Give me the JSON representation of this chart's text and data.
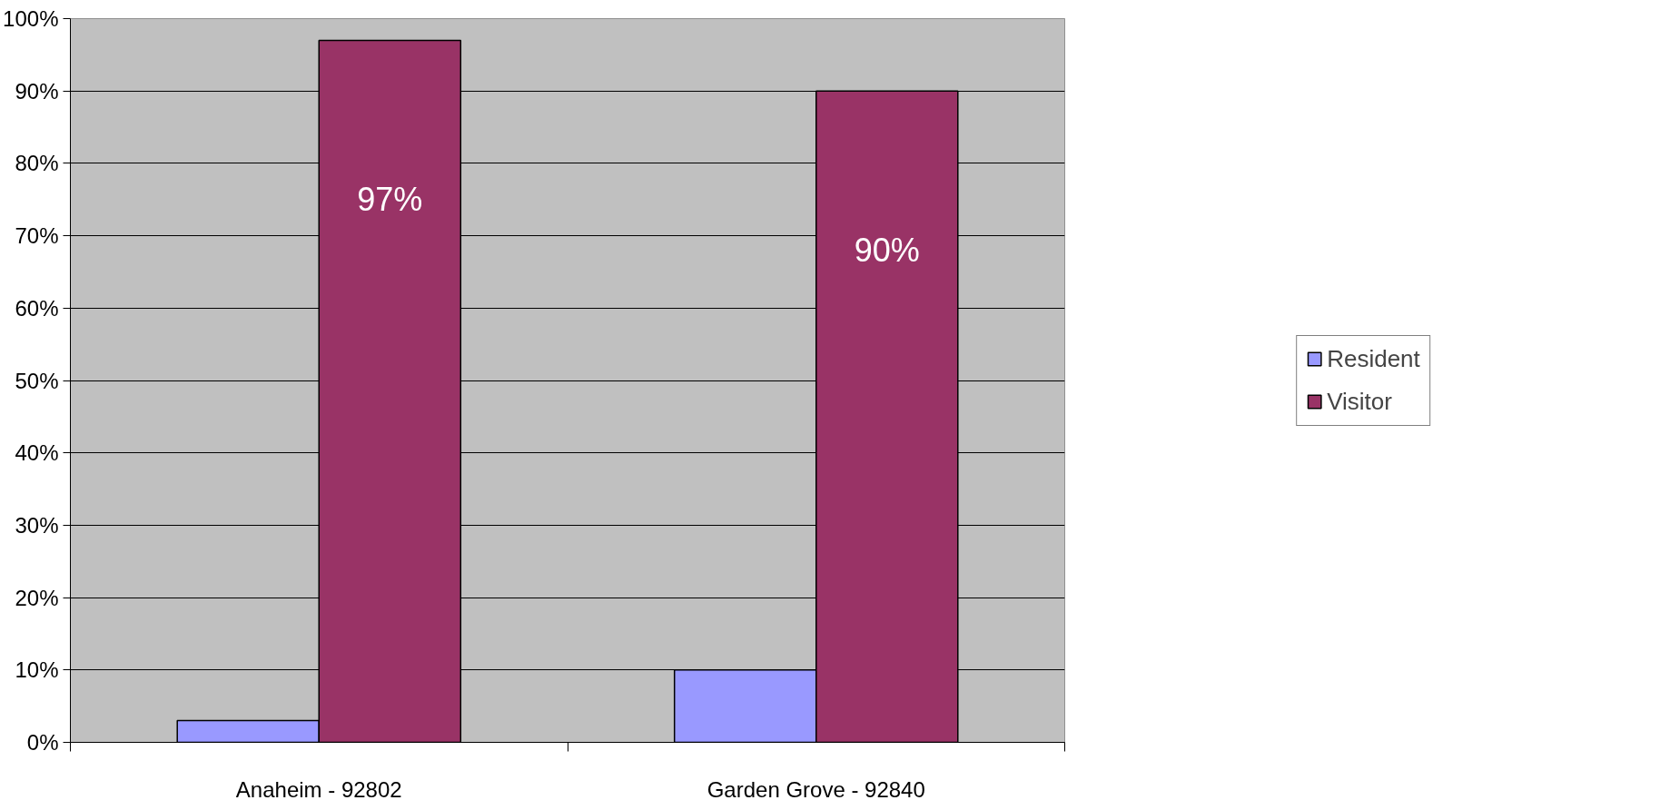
{
  "chart_data": {
    "type": "bar",
    "categories": [
      "Anaheim - 92802",
      "Garden Grove - 92840"
    ],
    "series": [
      {
        "name": "Resident",
        "color": "#9999ff",
        "values": [
          3,
          10
        ]
      },
      {
        "name": "Visitor",
        "color": "#993366",
        "values": [
          97,
          90
        ],
        "value_labels": [
          "97%",
          "90%"
        ]
      }
    ],
    "ylim": [
      0,
      100
    ],
    "yticks": [
      {
        "value": 0,
        "label": "0%"
      },
      {
        "value": 10,
        "label": "10%"
      },
      {
        "value": 20,
        "label": "20%"
      },
      {
        "value": 30,
        "label": "30%"
      },
      {
        "value": 40,
        "label": "40%"
      },
      {
        "value": 50,
        "label": "50%"
      },
      {
        "value": 60,
        "label": "60%"
      },
      {
        "value": 70,
        "label": "70%"
      },
      {
        "value": 80,
        "label": "80%"
      },
      {
        "value": 90,
        "label": "90%"
      },
      {
        "value": 100,
        "label": "100%"
      }
    ],
    "grid": "y",
    "legend": "right"
  }
}
